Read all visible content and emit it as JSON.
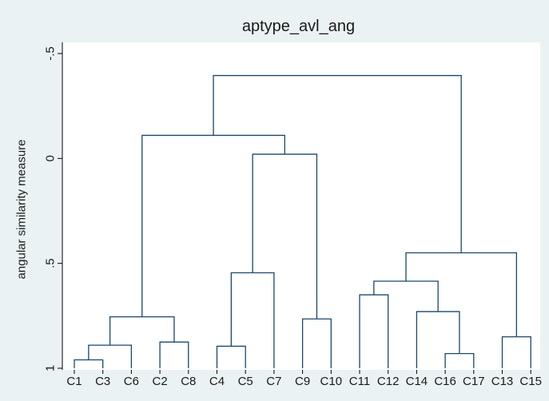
{
  "chart_data": {
    "type": "dendrogram",
    "title": "aptype_avl_ang",
    "ylabel": "angular similarity measure",
    "xlabel": "",
    "ylim": [
      -0.5,
      1
    ],
    "y_reversed": true,
    "yticks": [
      {
        "value": -0.5,
        "label": "-.5"
      },
      {
        "value": 0,
        "label": "0"
      },
      {
        "value": 0.5,
        "label": ".5"
      },
      {
        "value": 1,
        "label": "1"
      }
    ],
    "leaves": [
      "C1",
      "C3",
      "C6",
      "C2",
      "C8",
      "C4",
      "C5",
      "C7",
      "C9",
      "C10",
      "C11",
      "C12",
      "C14",
      "C16",
      "C17",
      "C13",
      "C15"
    ],
    "merges": [
      {
        "a": "C1",
        "b": "C3",
        "height": 0.96
      },
      {
        "a": 0,
        "b": "C6",
        "height": 0.89
      },
      {
        "a": "C2",
        "b": "C8",
        "height": 0.875
      },
      {
        "a": 1,
        "b": 2,
        "height": 0.755
      },
      {
        "a": "C4",
        "b": "C5",
        "height": 0.895
      },
      {
        "a": 4,
        "b": "C7",
        "height": 0.545
      },
      {
        "a": "C9",
        "b": "C10",
        "height": 0.765
      },
      {
        "a": 5,
        "b": 6,
        "height": -0.02
      },
      {
        "a": 3,
        "b": 7,
        "height": -0.11
      },
      {
        "a": "C11",
        "b": "C12",
        "height": 0.65
      },
      {
        "a": "C16",
        "b": "C17",
        "height": 0.93
      },
      {
        "a": "C14",
        "b": 10,
        "height": 0.73
      },
      {
        "a": 9,
        "b": 11,
        "height": 0.585
      },
      {
        "a": "C13",
        "b": "C15",
        "height": 0.85
      },
      {
        "a": 12,
        "b": 13,
        "height": 0.45
      },
      {
        "a": 8,
        "b": 14,
        "height": -0.395
      }
    ],
    "grid": false,
    "legend": "none",
    "colors": {
      "background": "#eaf2f3",
      "plot_area": "#ffffff",
      "link": "#1a476f",
      "axis": "#000000"
    }
  }
}
